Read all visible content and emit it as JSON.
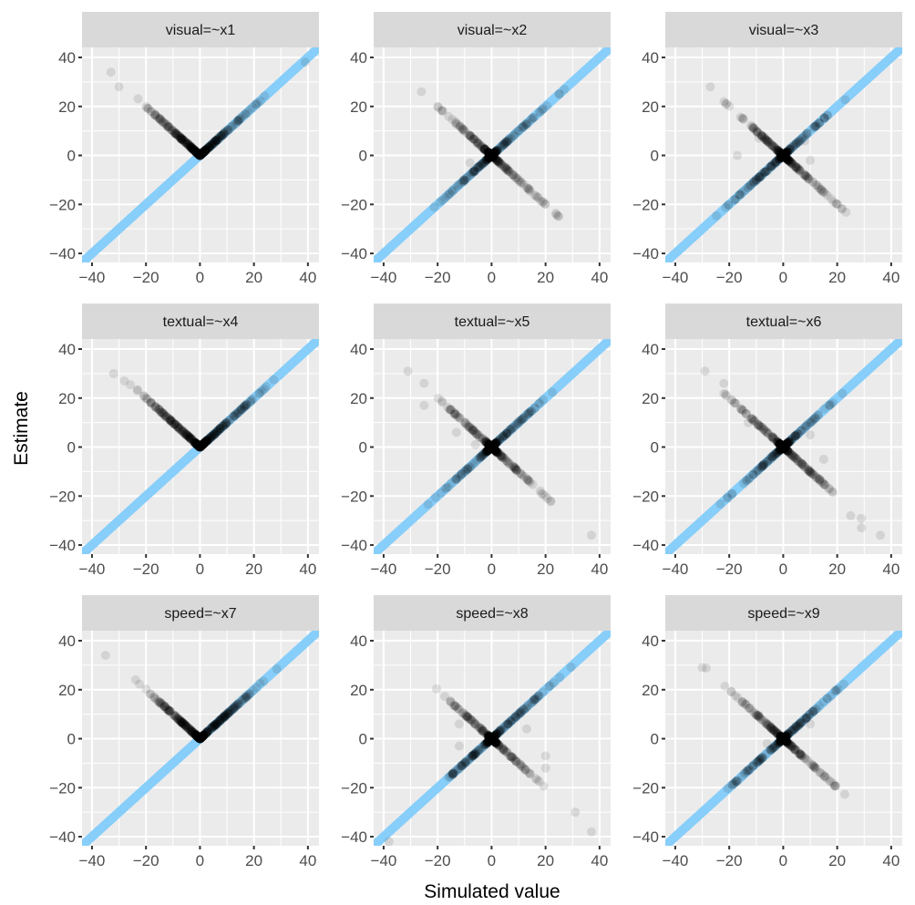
{
  "chart_data": {
    "type": "scatter",
    "layout": "facet-grid 3x3",
    "xlabel": "Simulated value",
    "ylabel": "Estimate",
    "xlim": [
      -43.7,
      44.1
    ],
    "ylim": [
      -43.7,
      44.1
    ],
    "x_ticks": [
      -40,
      -20,
      0,
      20,
      40
    ],
    "y_ticks": [
      -40,
      -20,
      0,
      20,
      40
    ],
    "x_tick_labels": [
      "−40",
      "−20",
      "0",
      "20",
      "40"
    ],
    "y_tick_labels": [
      "−40",
      "−20",
      "0",
      "20",
      "40"
    ],
    "grid": true,
    "reference_line": {
      "type": "identity",
      "slope": 1,
      "intercept": 0,
      "color": "#87cefa"
    },
    "point_color": "#000000",
    "point_alpha": 0.1,
    "panel_background": "#ebebeb",
    "strip_background": "#d9d9d9",
    "panels": [
      {
        "title": "visual=~x1",
        "pattern": "abs",
        "band_x_range": [
          -24,
          30
        ],
        "outliers": [
          [
            -33,
            34
          ],
          [
            -30,
            28
          ],
          [
            39,
            38
          ]
        ]
      },
      {
        "title": "visual=~x2",
        "pattern": "cross",
        "band_x_range": [
          -26,
          30
        ],
        "outliers": [
          [
            -26,
            26
          ],
          [
            -8,
            -3
          ],
          [
            25,
            25
          ],
          [
            27,
            27
          ]
        ]
      },
      {
        "title": "visual=~x3",
        "pattern": "cross",
        "band_x_range": [
          -27,
          29
        ],
        "outliers": [
          [
            -27,
            28
          ],
          [
            -9,
            7
          ],
          [
            -17,
            0
          ],
          [
            8,
            6
          ],
          [
            10,
            -2
          ]
        ]
      },
      {
        "title": "textual=~x4",
        "pattern": "abs",
        "band_x_range": [
          -31,
          31
        ],
        "outliers": [
          [
            -32,
            30
          ],
          [
            -28,
            27
          ]
        ]
      },
      {
        "title": "textual=~x5",
        "pattern": "cross",
        "band_x_range": [
          -27,
          30
        ],
        "outliers": [
          [
            -31,
            31
          ],
          [
            -25,
            26
          ],
          [
            -25,
            17
          ],
          [
            -13,
            6
          ],
          [
            -6,
            1
          ],
          [
            37,
            -36
          ]
        ]
      },
      {
        "title": "textual=~x6",
        "pattern": "cross",
        "band_x_range": [
          -29,
          33
        ],
        "outliers": [
          [
            -29,
            31
          ],
          [
            -22,
            26
          ],
          [
            -13,
            10
          ],
          [
            10,
            5
          ],
          [
            15,
            -5
          ],
          [
            25,
            -28
          ],
          [
            29,
            -33
          ],
          [
            36,
            -36
          ]
        ]
      },
      {
        "title": "speed=~x7",
        "pattern": "abs",
        "band_x_range": [
          -26,
          30
        ],
        "outliers": [
          [
            -35,
            34
          ]
        ]
      },
      {
        "title": "speed=~x8",
        "pattern": "cross",
        "band_x_range": [
          -27,
          32
        ],
        "outliers": [
          [
            -12,
            6
          ],
          [
            -12,
            -3
          ],
          [
            13,
            4
          ],
          [
            20,
            -7
          ],
          [
            20,
            -12
          ],
          [
            31,
            -30
          ],
          [
            37,
            -38
          ],
          [
            -38,
            -42
          ]
        ]
      },
      {
        "title": "speed=~x9",
        "pattern": "cross",
        "band_x_range": [
          -30,
          26
        ],
        "outliers": [
          [
            -30,
            29
          ],
          [
            -6,
            -2
          ],
          [
            10,
            6
          ]
        ]
      }
    ]
  }
}
